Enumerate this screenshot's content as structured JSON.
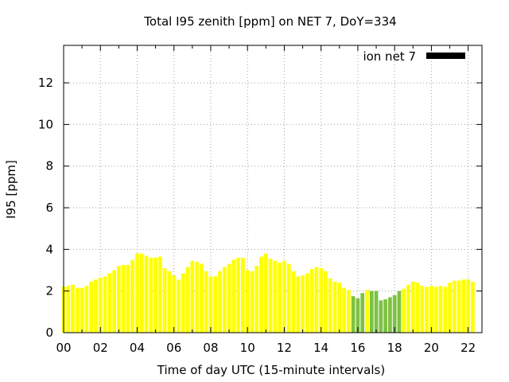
{
  "chart_data": {
    "type": "bar",
    "title": "Total I95 zenith [ppm] on NET 7, DoY=334",
    "xlabel": "Time of day UTC (15-minute intervals)",
    "ylabel": "I95 [ppm]",
    "xlim": [
      0,
      22.75
    ],
    "ylim": [
      0,
      13.8
    ],
    "grid": true,
    "legend": {
      "label": "ion net 7",
      "position": "top-right",
      "swatch_color": "#000000"
    },
    "x_ticks": [
      "00",
      "02",
      "04",
      "06",
      "08",
      "10",
      "12",
      "14",
      "16",
      "18",
      "20",
      "22"
    ],
    "y_ticks": [
      "0",
      "2",
      "4",
      "6",
      "8",
      "10",
      "12"
    ],
    "bar_interval_hours": 0.25,
    "colors": {
      "yellow": "#ffff00",
      "green": "#7dc142"
    },
    "values": [
      2.2,
      2.25,
      2.3,
      2.15,
      2.15,
      2.25,
      2.45,
      2.55,
      2.65,
      2.7,
      2.85,
      3.0,
      3.2,
      3.25,
      3.25,
      3.5,
      3.8,
      3.8,
      3.7,
      3.6,
      3.6,
      3.65,
      3.1,
      2.95,
      2.75,
      2.55,
      2.85,
      3.15,
      3.45,
      3.4,
      3.3,
      2.95,
      2.7,
      2.7,
      2.95,
      3.15,
      3.3,
      3.5,
      3.6,
      3.6,
      3.0,
      2.95,
      3.2,
      3.65,
      3.8,
      3.55,
      3.45,
      3.35,
      3.45,
      3.3,
      2.95,
      2.7,
      2.75,
      2.85,
      3.05,
      3.15,
      3.1,
      2.95,
      2.6,
      2.45,
      2.4,
      2.15,
      2.05,
      1.75,
      1.65,
      1.9,
      2.05,
      2.0,
      2.0,
      1.55,
      1.6,
      1.7,
      1.8,
      2.0,
      2.1,
      2.3,
      2.45,
      2.4,
      2.25,
      2.2,
      2.25,
      2.2,
      2.25,
      2.2,
      2.4,
      2.5,
      2.5,
      2.55,
      2.55,
      2.45
    ],
    "bar_colors": [
      "yellow",
      "yellow",
      "yellow",
      "yellow",
      "yellow",
      "yellow",
      "yellow",
      "yellow",
      "yellow",
      "yellow",
      "yellow",
      "yellow",
      "yellow",
      "yellow",
      "yellow",
      "yellow",
      "yellow",
      "yellow",
      "yellow",
      "yellow",
      "yellow",
      "yellow",
      "yellow",
      "yellow",
      "yellow",
      "yellow",
      "yellow",
      "yellow",
      "yellow",
      "yellow",
      "yellow",
      "yellow",
      "yellow",
      "yellow",
      "yellow",
      "yellow",
      "yellow",
      "yellow",
      "yellow",
      "yellow",
      "yellow",
      "yellow",
      "yellow",
      "yellow",
      "yellow",
      "yellow",
      "yellow",
      "yellow",
      "yellow",
      "yellow",
      "yellow",
      "yellow",
      "yellow",
      "yellow",
      "yellow",
      "yellow",
      "yellow",
      "yellow",
      "yellow",
      "yellow",
      "yellow",
      "yellow",
      "yellow",
      "green",
      "green",
      "green",
      "yellow",
      "green",
      "green",
      "green",
      "green",
      "green",
      "green",
      "green",
      "yellow",
      "yellow",
      "yellow",
      "yellow",
      "yellow",
      "yellow",
      "yellow",
      "yellow",
      "yellow",
      "yellow",
      "yellow",
      "yellow",
      "yellow",
      "yellow",
      "yellow",
      "yellow"
    ]
  }
}
